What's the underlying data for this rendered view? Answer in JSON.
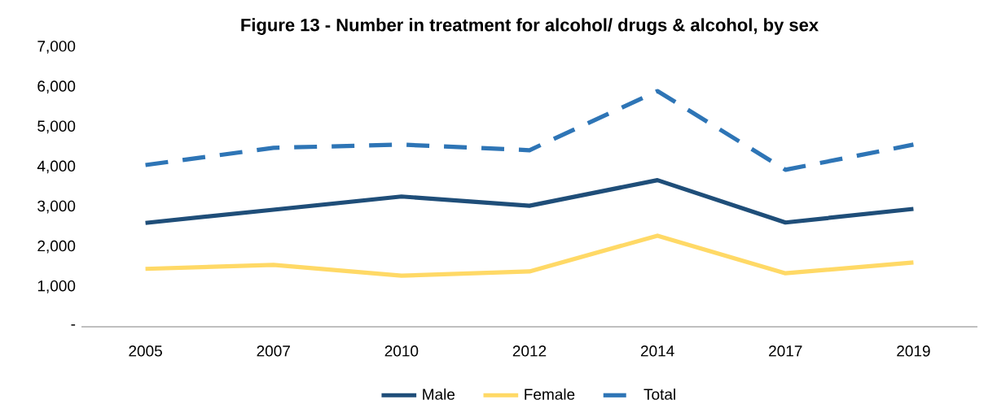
{
  "chart_data": {
    "type": "line",
    "title": "Figure 13 - Number in treatment for alcohol/ drugs & alcohol, by sex",
    "categories": [
      "2005",
      "2007",
      "2010",
      "2012",
      "2014",
      "2017",
      "2019"
    ],
    "series": [
      {
        "name": "Male",
        "color": "#1f4e79",
        "values": [
          2600,
          2930,
          3260,
          3030,
          3670,
          2610,
          2950
        ]
      },
      {
        "name": "Female",
        "color": "#ffd966",
        "values": [
          1450,
          1550,
          1280,
          1385,
          2280,
          1340,
          1610
        ]
      },
      {
        "name": "Total",
        "color": "#2e75b6",
        "line_style": "dashed",
        "values": [
          4050,
          4480,
          4560,
          4420,
          5900,
          3930,
          4560
        ]
      }
    ],
    "ylim": [
      0,
      7000
    ],
    "yticks": [
      {
        "value": 0,
        "label": "-"
      },
      {
        "value": 1000,
        "label": "1,000"
      },
      {
        "value": 2000,
        "label": "2,000"
      },
      {
        "value": 3000,
        "label": "3,000"
      },
      {
        "value": 4000,
        "label": "4,000"
      },
      {
        "value": 5000,
        "label": "5,000"
      },
      {
        "value": 6000,
        "label": "6,000"
      },
      {
        "value": 7000,
        "label": "7,000"
      }
    ],
    "legend": "bottom",
    "marker": "none"
  }
}
